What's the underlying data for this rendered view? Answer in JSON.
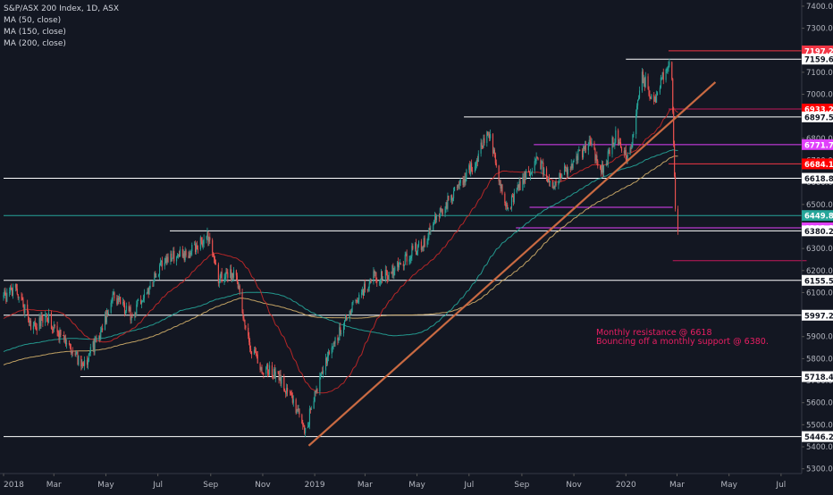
{
  "chart_data": {
    "type": "candlestick",
    "title": "S&P/ASX 200 Index, 1D, ASX",
    "indicators": [
      {
        "name": "MA (50, close)",
        "color": "#c62828"
      },
      {
        "name": "MA (150, close)",
        "color": "#26a69a"
      },
      {
        "name": "MA (200, close)",
        "color": "#d4b06a"
      }
    ],
    "colors": {
      "background": "#131722",
      "up": "#26a69a",
      "down": "#ef5350",
      "axis_text": "#b2b5be",
      "trendline": "#c96a42",
      "annotation": "#e91e63"
    },
    "ylim": [
      5250,
      7420
    ],
    "x_ticks": [
      "2018",
      "Mar",
      "May",
      "Jul",
      "Sep",
      "Nov",
      "2019",
      "Mar",
      "May",
      "Jul",
      "Sep",
      "Nov",
      "2020",
      "Mar",
      "May",
      "Jul"
    ],
    "y_ticks": [
      7400.0,
      7300.0,
      7200.0,
      7100.0,
      7000.0,
      6900.0,
      6800.0,
      6700.0,
      6600.0,
      6500.0,
      6400.0,
      6300.0,
      6200.0,
      6100.0,
      6000.0,
      5900.0,
      5800.0,
      5700.0,
      5600.0,
      5500.0,
      5400.0,
      5300.0
    ],
    "levels": [
      {
        "label": "7197.2",
        "value": 7197.2,
        "color": "#f23645",
        "label_bg": "#f23645",
        "label_color": "#ffffff",
        "x_start": "2020-02-20"
      },
      {
        "label": "7159.6",
        "value": 7159.6,
        "color": "#ffffff",
        "label_bg": "#ffffff",
        "label_color": "#131722",
        "x_start": "2020-01-01"
      },
      {
        "label": "6933.2",
        "value": 6933.2,
        "color": "#c2185b",
        "label_bg": "#ff0000",
        "label_color": "#ffffff",
        "x_start": "2020-02-20"
      },
      {
        "label": "6897.5",
        "value": 6897.5,
        "color": "#ffffff",
        "label_bg": "#ffffff",
        "label_color": "#131722",
        "x_start": "2019-06-25"
      },
      {
        "label": "6771.7",
        "value": 6771.7,
        "color": "#e040fb",
        "label_bg": "#e040fb",
        "label_color": "#ffffff",
        "x_start": "2019-09-15"
      },
      {
        "label": "6684.1",
        "value": 6684.1,
        "color": "#f23645",
        "label_bg": "#ff0000",
        "label_color": "#ffffff",
        "x_start": "2020-02-20"
      },
      {
        "label": "6618.8",
        "value": 6618.8,
        "color": "#ffffff",
        "label_bg": "#ffffff",
        "label_color": "#131722",
        "x_start": "2018-01-01"
      },
      {
        "label": "6449.8",
        "value": 6449.8,
        "color": "#26a69a",
        "label_bg": "#26a69a",
        "label_color": "#ffffff",
        "x_start": "2018-01-01"
      },
      {
        "label": "6393.8",
        "value": 6393.8,
        "color": "#e040fb",
        "label_bg": "#e040fb",
        "label_color": "#ffffff",
        "x_start": "2019-08-25"
      },
      {
        "label": "6380.2",
        "value": 6380.2,
        "color": "#ffffff",
        "label_bg": "#ffffff",
        "label_color": "#131722",
        "x_start": "2018-07-15"
      },
      {
        "label": "6155.5",
        "value": 6155.5,
        "color": "#ffffff",
        "label_bg": "#ffffff",
        "label_color": "#131722",
        "x_start": "2018-01-01"
      },
      {
        "label": "5997.2",
        "value": 5997.2,
        "color": "#ffffff",
        "label_bg": "#ffffff",
        "label_color": "#131722",
        "x_start": "2018-01-01"
      },
      {
        "label": "5718.4",
        "value": 5718.4,
        "color": "#ffffff",
        "label_bg": "#ffffff",
        "label_color": "#131722",
        "x_start": "2018-04-01"
      },
      {
        "label": "5446.2",
        "value": 5446.2,
        "color": "#ffffff",
        "label_bg": "#ffffff",
        "label_color": "#131722",
        "x_start": "2018-01-01"
      }
    ],
    "extra_lines": [
      {
        "value": 6245,
        "x_start": "2020-02-25",
        "x_end": "2020-07-31",
        "color": "#c2185b"
      },
      {
        "value": 6487,
        "x_start": "2019-09-10",
        "x_end": "2020-02-25",
        "color": "#e040fb"
      }
    ],
    "trendline": {
      "from": {
        "x": "2018-12-25",
        "y": 5405
      },
      "to": {
        "x": "2020-04-15",
        "y": 7055
      }
    },
    "annotations": [
      "Monthly resistance @ 6618",
      "Bouncing off a monthly support @ 6380."
    ],
    "anchors": [
      [
        "2018-01-01",
        6080
      ],
      [
        "2018-01-15",
        6120
      ],
      [
        "2018-02-05",
        5930
      ],
      [
        "2018-02-20",
        6000
      ],
      [
        "2018-03-05",
        5920
      ],
      [
        "2018-03-20",
        5860
      ],
      [
        "2018-04-03",
        5760
      ],
      [
        "2018-04-20",
        5880
      ],
      [
        "2018-05-10",
        6080
      ],
      [
        "2018-05-31",
        6000
      ],
      [
        "2018-06-15",
        6080
      ],
      [
        "2018-07-10",
        6260
      ],
      [
        "2018-08-01",
        6270
      ],
      [
        "2018-08-30",
        6360
      ],
      [
        "2018-09-10",
        6170
      ],
      [
        "2018-10-01",
        6190
      ],
      [
        "2018-10-15",
        5880
      ],
      [
        "2018-10-30",
        5760
      ],
      [
        "2018-11-15",
        5740
      ],
      [
        "2018-12-05",
        5630
      ],
      [
        "2018-12-21",
        5470
      ],
      [
        "2019-01-05",
        5690
      ],
      [
        "2019-01-25",
        5880
      ],
      [
        "2019-02-15",
        6050
      ],
      [
        "2019-03-10",
        6170
      ],
      [
        "2019-03-29",
        6180
      ],
      [
        "2019-04-20",
        6270
      ],
      [
        "2019-05-10",
        6330
      ],
      [
        "2019-05-28",
        6470
      ],
      [
        "2019-06-15",
        6560
      ],
      [
        "2019-07-03",
        6660
      ],
      [
        "2019-07-25",
        6830
      ],
      [
        "2019-08-05",
        6600
      ],
      [
        "2019-08-15",
        6480
      ],
      [
        "2019-09-01",
        6600
      ],
      [
        "2019-09-20",
        6720
      ],
      [
        "2019-10-05",
        6570
      ],
      [
        "2019-10-20",
        6640
      ],
      [
        "2019-11-01",
        6700
      ],
      [
        "2019-11-20",
        6770
      ],
      [
        "2019-12-05",
        6650
      ],
      [
        "2019-12-20",
        6820
      ],
      [
        "2020-01-05",
        6700
      ],
      [
        "2020-01-20",
        7090
      ],
      [
        "2020-02-03",
        6960
      ],
      [
        "2020-02-20",
        7150
      ],
      [
        "2020-02-24",
        7070
      ],
      [
        "2020-02-28",
        6480
      ],
      [
        "2020-03-02",
        6380
      ]
    ]
  }
}
